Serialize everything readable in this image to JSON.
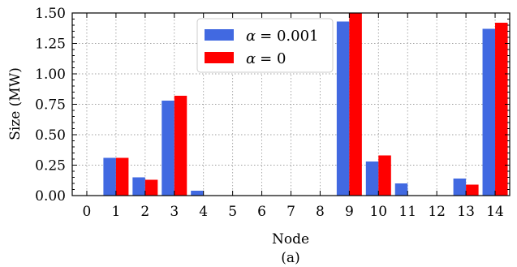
{
  "chart_data": {
    "type": "bar",
    "title": "",
    "xlabel": "Node",
    "ylabel": "Size (MW)",
    "caption": "(a)",
    "categories": [
      "0",
      "1",
      "2",
      "3",
      "4",
      "5",
      "6",
      "7",
      "8",
      "9",
      "10",
      "11",
      "12",
      "13",
      "14"
    ],
    "ylim": [
      0,
      1.5
    ],
    "yticks": [
      "0.00",
      "0.25",
      "0.50",
      "0.75",
      "1.00",
      "1.25",
      "1.50"
    ],
    "grid": true,
    "legend_position": "top-center",
    "series": [
      {
        "name_prefix": "α",
        "name_suffix": "= 0.001",
        "color": "#4169E1",
        "values": [
          0,
          0.31,
          0.15,
          0.78,
          0.04,
          0,
          0,
          0,
          0,
          1.43,
          0.28,
          0.1,
          0,
          0.14,
          1.37
        ]
      },
      {
        "name_prefix": "α",
        "name_suffix": "= 0",
        "color": "#FF0000",
        "values": [
          0,
          0.31,
          0.13,
          0.82,
          0,
          0,
          0,
          0,
          0,
          1.5,
          0.33,
          0,
          0,
          0.09,
          1.42
        ]
      }
    ]
  }
}
